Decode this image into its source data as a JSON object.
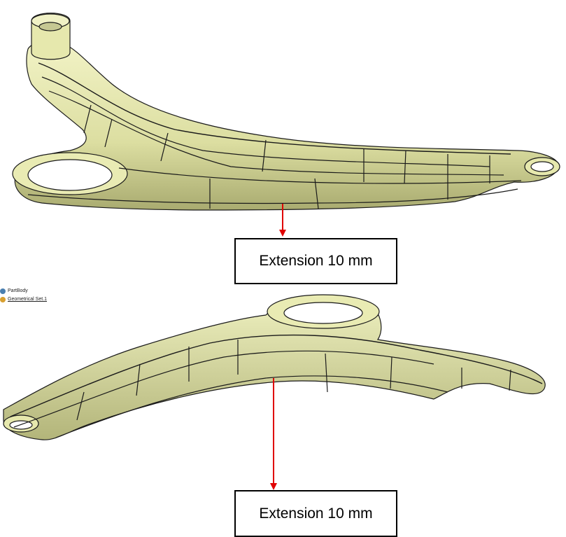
{
  "tree": {
    "items": [
      {
        "label": "PartBody",
        "icon": "gear-body-icon"
      },
      {
        "label": "Geometrical Set.1",
        "icon": "geometrical-set-icon"
      }
    ]
  },
  "callouts": [
    {
      "label": "Extension 10 mm"
    },
    {
      "label": "Extension 10 mm"
    }
  ],
  "colors": {
    "part": "#e8eab0",
    "part_shadow": "#b9bb80",
    "edge": "#1a1a1a",
    "arrow": "#e00000"
  }
}
